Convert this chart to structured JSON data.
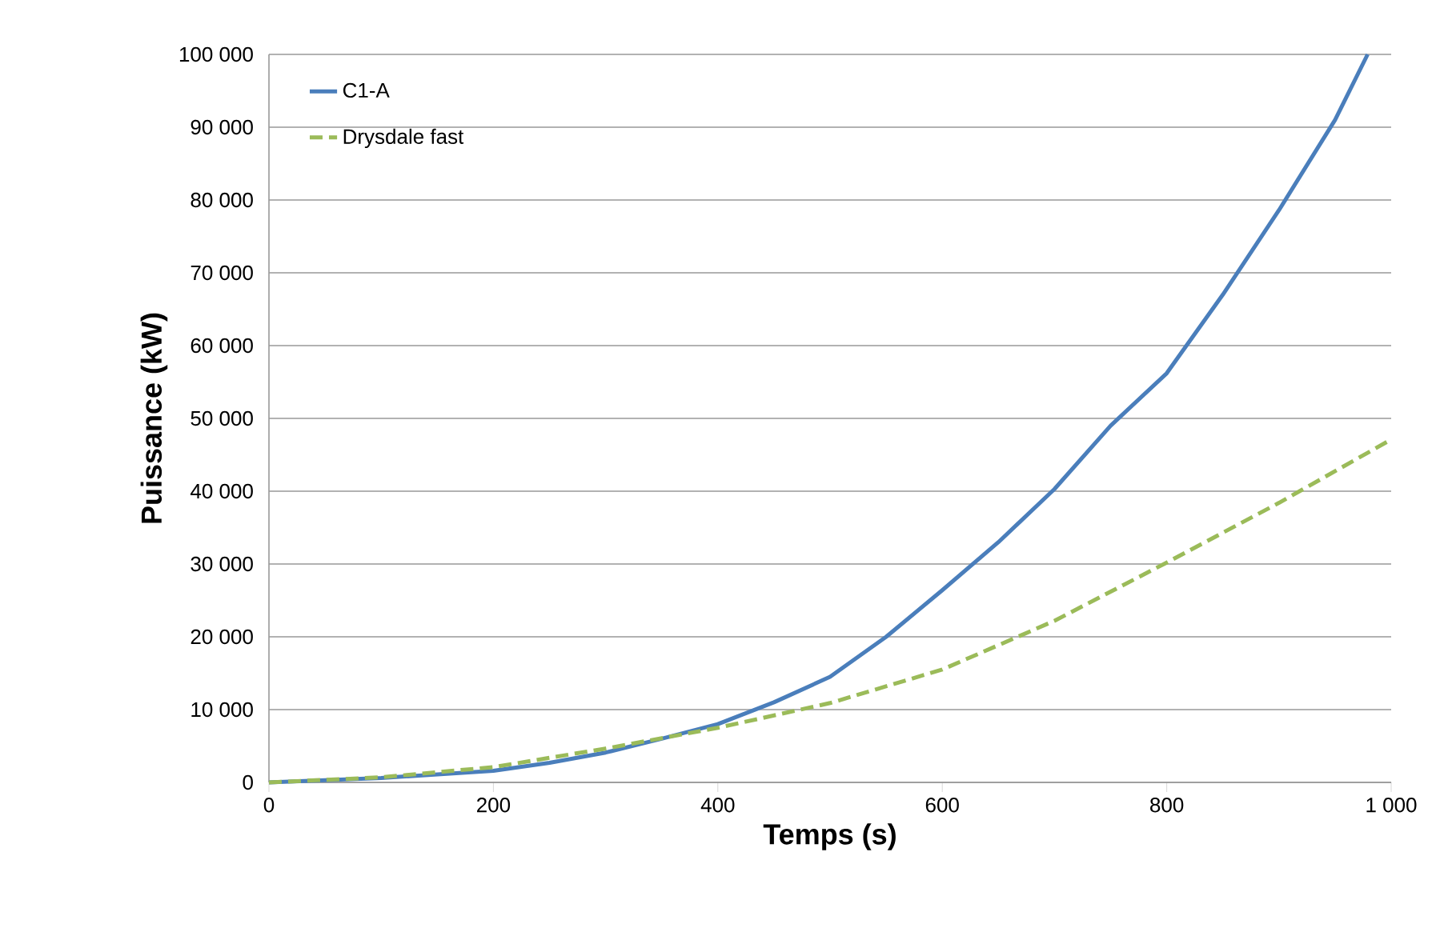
{
  "chart_data": {
    "type": "line",
    "xlabel": "Temps (s)",
    "ylabel": "Puissance (kW)",
    "xlim": [
      0,
      1000
    ],
    "ylim": [
      0,
      100000
    ],
    "xticks": [
      0,
      200,
      400,
      600,
      800,
      {
        "value": 1000,
        "label": "1 000"
      }
    ],
    "yticks": [
      0,
      {
        "value": 10000,
        "label": "10 000"
      },
      {
        "value": 20000,
        "label": "20 000"
      },
      {
        "value": 30000,
        "label": "30 000"
      },
      {
        "value": 40000,
        "label": "40 000"
      },
      {
        "value": 50000,
        "label": "50 000"
      },
      {
        "value": 60000,
        "label": "60 000"
      },
      {
        "value": 70000,
        "label": "70 000"
      },
      {
        "value": 80000,
        "label": "80 000"
      },
      {
        "value": 90000,
        "label": "90 000"
      },
      {
        "value": 100000,
        "label": "100 000"
      }
    ],
    "grid": "y",
    "legend": "top left",
    "marker": "none",
    "series": [
      {
        "name": "C1-A",
        "color": "#4a7ebb",
        "line_style": "solid",
        "x": [
          0,
          100,
          200,
          250,
          300,
          350,
          400,
          450,
          500,
          550,
          600,
          650,
          700,
          750,
          800,
          850,
          900,
          950,
          979
        ],
        "values": [
          0,
          600,
          1600,
          2700,
          4100,
          6000,
          8000,
          11000,
          14500,
          20000,
          26400,
          33000,
          40300,
          49000,
          56200,
          67000,
          78600,
          91000,
          100000
        ]
      },
      {
        "name": "Drysdale fast",
        "color": "#9bbb59",
        "line_style": "dashed",
        "x": [
          0,
          100,
          200,
          300,
          400,
          500,
          600,
          700,
          800,
          900,
          1000
        ],
        "values": [
          0,
          700,
          2100,
          4650,
          7500,
          10900,
          15500,
          22200,
          30200,
          38400,
          47100
        ]
      }
    ]
  }
}
